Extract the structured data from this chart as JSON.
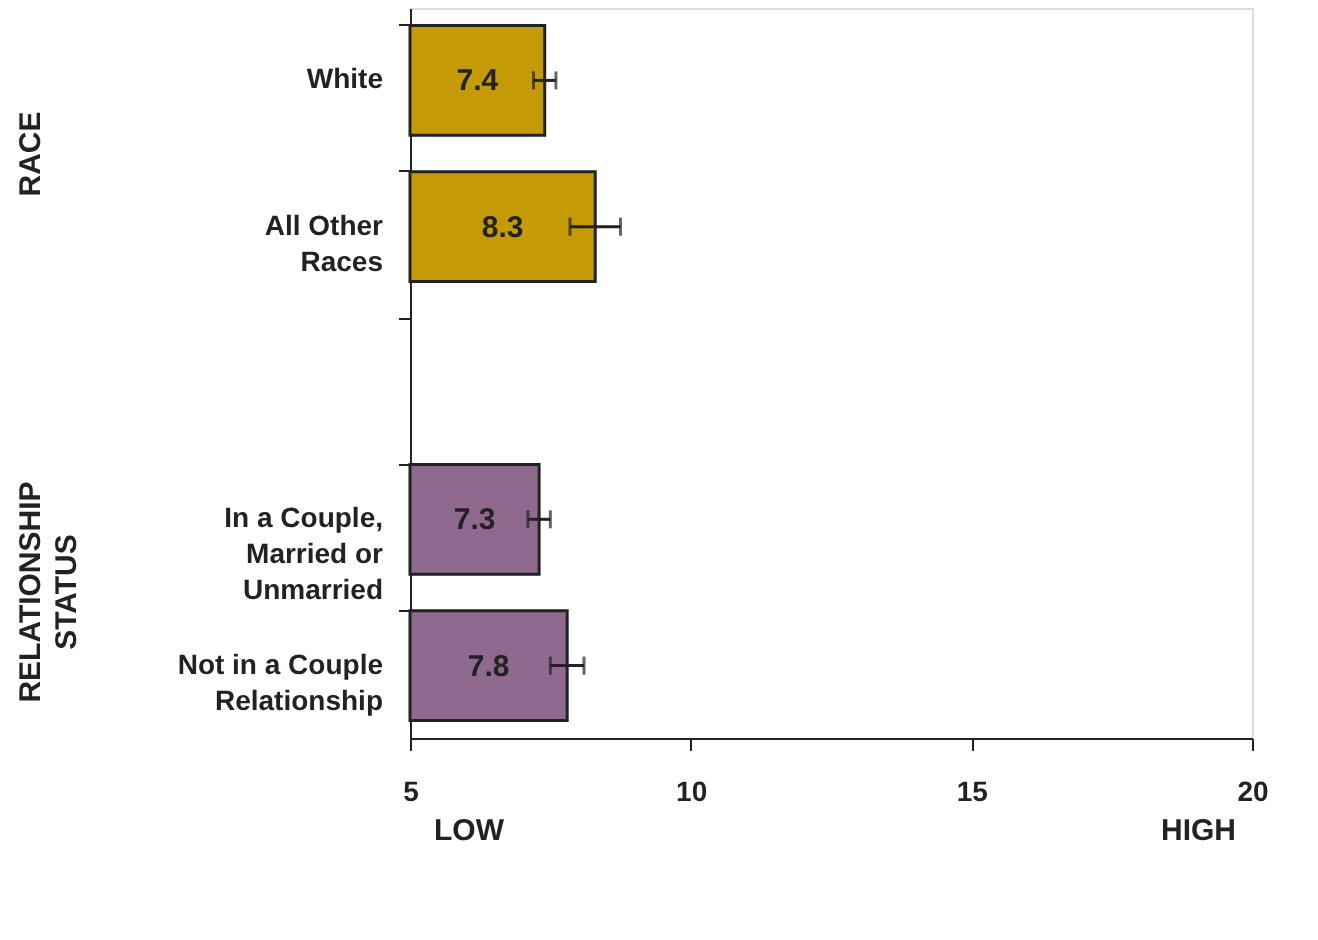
{
  "chart_data": {
    "type": "bar",
    "orientation": "horizontal",
    "categories": [
      "White",
      "All Other\nRaces",
      null,
      "In a Couple,\nMarried or\nUnmarried",
      "Not in a Couple\nRelationship"
    ],
    "values": [
      7.4,
      8.3,
      null,
      7.3,
      7.8
    ],
    "errors": [
      0.2,
      0.45,
      null,
      0.2,
      0.3
    ],
    "colors": [
      "#c49a06",
      "#c49a06",
      null,
      "#8f6a8e",
      "#8f6a8e"
    ],
    "xlim": [
      5,
      20
    ],
    "xticks": [
      5,
      10,
      15,
      20
    ],
    "data_labels": true,
    "grid": false,
    "annotations": [
      "RACE",
      "RELATIONSHIP\nSTATUS",
      "LOW",
      "HIGH"
    ]
  }
}
